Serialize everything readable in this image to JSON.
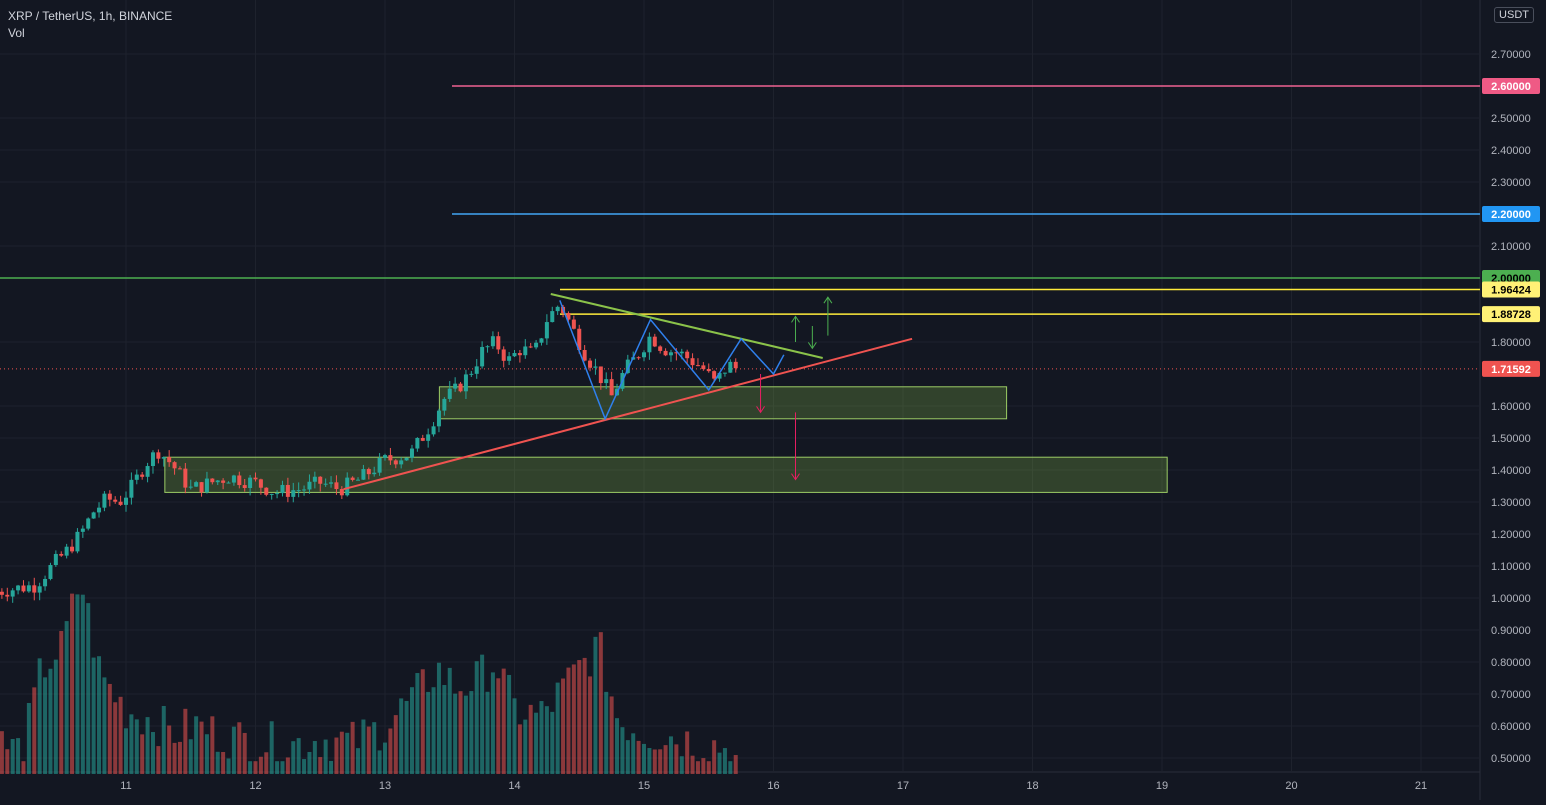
{
  "header": {
    "symbol_line": "XRP / TetherUS, 1h, BINANCE",
    "indicator": "Vol",
    "currency_badge": "USDT"
  },
  "colors": {
    "background": "#131722",
    "up": "#26a69a",
    "down": "#ef5350",
    "grid": "#1e222d",
    "text": "#b2b5be"
  },
  "chart_data": {
    "type": "candlestick",
    "ylim": [
      0.45,
      2.82
    ],
    "y_ticks": [
      "2.70000",
      "2.50000",
      "2.40000",
      "2.30000",
      "2.10000",
      "1.80000",
      "1.60000",
      "1.50000",
      "1.40000",
      "1.30000",
      "1.20000",
      "1.10000",
      "1.00000",
      "0.90000",
      "0.80000",
      "0.70000",
      "0.60000",
      "0.50000"
    ],
    "x_ticks": [
      "11",
      "12",
      "13",
      "14",
      "15",
      "16",
      "17",
      "18",
      "19",
      "20",
      "21"
    ],
    "price_levels": [
      {
        "label": "2.60000",
        "value": 2.6,
        "color": "#f06292",
        "bg": "#ef5a85",
        "text_color": "#ffffff"
      },
      {
        "label": "2.20000",
        "value": 2.2,
        "color": "#42a5f5",
        "bg": "#2196f3",
        "text_color": "#ffffff"
      },
      {
        "label": "2.00000",
        "value": 2.0,
        "color": "#4caf50",
        "bg": "#4caf50",
        "text_color": "#000000"
      },
      {
        "label": "1.96424",
        "value": 1.96424,
        "color": "#ffeb3b",
        "bg": "#fff176",
        "text_color": "#000000"
      },
      {
        "label": "1.88728",
        "value": 1.88728,
        "color": "#ffeb3b",
        "bg": "#fff176",
        "text_color": "#000000"
      },
      {
        "label": "1.71592",
        "value": 1.71592,
        "color": "#ef5350",
        "bg": "#ef5350",
        "text_color": "#ffffff"
      }
    ],
    "support_zones": [
      {
        "x_start": 13.42,
        "x_end": 17.8,
        "y_low": 1.56,
        "y_high": 1.66
      },
      {
        "x_start": 11.3,
        "x_end": 19.04,
        "y_low": 1.33,
        "y_high": 1.44
      }
    ],
    "trendlines": [
      {
        "name": "ascending support",
        "color": "#ef5350",
        "points": [
          [
            12.68,
            1.34
          ],
          [
            17.07,
            1.81
          ]
        ]
      },
      {
        "name": "descending resistance",
        "color": "#8bc34a",
        "points": [
          [
            14.28,
            1.95
          ],
          [
            16.38,
            1.75
          ]
        ]
      }
    ],
    "projection_path": {
      "color": "#2f80ed",
      "points": [
        [
          14.35,
          1.93
        ],
        [
          14.7,
          1.56
        ],
        [
          15.05,
          1.87
        ],
        [
          15.5,
          1.65
        ],
        [
          15.75,
          1.81
        ],
        [
          16,
          1.7
        ],
        [
          16.08,
          1.76
        ]
      ]
    },
    "arrows": [
      {
        "direction": "up",
        "color": "#4caf50",
        "x": 16.17,
        "from": 1.8,
        "to": 1.88
      },
      {
        "direction": "up",
        "color": "#4caf50",
        "x": 16.42,
        "from": 1.82,
        "to": 1.94
      },
      {
        "direction": "down",
        "color": "#4caf50",
        "x": 16.3,
        "from": 1.85,
        "to": 1.78
      },
      {
        "direction": "down",
        "color": "#e91e63",
        "x": 15.9,
        "from": 1.7,
        "to": 1.58
      },
      {
        "direction": "down",
        "color": "#e91e63",
        "x": 16.17,
        "from": 1.58,
        "to": 1.37
      }
    ],
    "price_series": [
      {
        "t": 10.0,
        "close": 1.02
      },
      {
        "t": 10.15,
        "close": 1.03
      },
      {
        "t": 10.3,
        "close": 1.04
      },
      {
        "t": 10.45,
        "close": 1.11
      },
      {
        "t": 10.55,
        "close": 1.15
      },
      {
        "t": 10.65,
        "close": 1.2
      },
      {
        "t": 10.75,
        "close": 1.27
      },
      {
        "t": 10.85,
        "close": 1.31
      },
      {
        "t": 10.95,
        "close": 1.3
      },
      {
        "t": 11.05,
        "close": 1.35
      },
      {
        "t": 11.15,
        "close": 1.42
      },
      {
        "t": 11.25,
        "close": 1.46
      },
      {
        "t": 11.35,
        "close": 1.42
      },
      {
        "t": 11.5,
        "close": 1.34
      },
      {
        "t": 11.65,
        "close": 1.36
      },
      {
        "t": 11.8,
        "close": 1.38
      },
      {
        "t": 12.0,
        "close": 1.36
      },
      {
        "t": 12.15,
        "close": 1.33
      },
      {
        "t": 12.35,
        "close": 1.34
      },
      {
        "t": 12.5,
        "close": 1.36
      },
      {
        "t": 12.65,
        "close": 1.34
      },
      {
        "t": 12.8,
        "close": 1.37
      },
      {
        "t": 13.0,
        "close": 1.43
      },
      {
        "t": 13.2,
        "close": 1.45
      },
      {
        "t": 13.35,
        "close": 1.54
      },
      {
        "t": 13.45,
        "close": 1.62
      },
      {
        "t": 13.55,
        "close": 1.65
      },
      {
        "t": 13.65,
        "close": 1.7
      },
      {
        "t": 13.75,
        "close": 1.77
      },
      {
        "t": 13.85,
        "close": 1.8
      },
      {
        "t": 13.95,
        "close": 1.74
      },
      {
        "t": 14.05,
        "close": 1.78
      },
      {
        "t": 14.15,
        "close": 1.76
      },
      {
        "t": 14.25,
        "close": 1.87
      },
      {
        "t": 14.35,
        "close": 1.92
      },
      {
        "t": 14.45,
        "close": 1.84
      },
      {
        "t": 14.55,
        "close": 1.76
      },
      {
        "t": 14.65,
        "close": 1.7
      },
      {
        "t": 14.75,
        "close": 1.63
      },
      {
        "t": 14.85,
        "close": 1.71
      },
      {
        "t": 14.95,
        "close": 1.76
      },
      {
        "t": 15.05,
        "close": 1.82
      },
      {
        "t": 15.15,
        "close": 1.78
      },
      {
        "t": 15.3,
        "close": 1.76
      },
      {
        "t": 15.45,
        "close": 1.72
      },
      {
        "t": 15.55,
        "close": 1.67
      },
      {
        "t": 15.65,
        "close": 1.73
      },
      {
        "t": 15.72,
        "close": 1.716
      }
    ],
    "volume_series": [
      {
        "t": 10.0,
        "v": 0.55
      },
      {
        "t": 10.2,
        "v": 0.52
      },
      {
        "t": 10.35,
        "v": 0.78
      },
      {
        "t": 10.5,
        "v": 0.84
      },
      {
        "t": 10.65,
        "v": 1.06
      },
      {
        "t": 10.8,
        "v": 0.76
      },
      {
        "t": 11.0,
        "v": 0.65
      },
      {
        "t": 11.2,
        "v": 0.62
      },
      {
        "t": 11.35,
        "v": 0.58
      },
      {
        "t": 11.55,
        "v": 0.6
      },
      {
        "t": 11.75,
        "v": 0.57
      },
      {
        "t": 12.0,
        "v": 0.55
      },
      {
        "t": 12.25,
        "v": 0.54
      },
      {
        "t": 12.5,
        "v": 0.56
      },
      {
        "t": 12.75,
        "v": 0.55
      },
      {
        "t": 13.0,
        "v": 0.6
      },
      {
        "t": 13.25,
        "v": 0.7
      },
      {
        "t": 13.4,
        "v": 0.78
      },
      {
        "t": 13.55,
        "v": 0.72
      },
      {
        "t": 13.7,
        "v": 0.74
      },
      {
        "t": 13.85,
        "v": 0.8
      },
      {
        "t": 14.0,
        "v": 0.65
      },
      {
        "t": 14.2,
        "v": 0.63
      },
      {
        "t": 14.35,
        "v": 0.7
      },
      {
        "t": 14.5,
        "v": 0.78
      },
      {
        "t": 14.65,
        "v": 0.85
      },
      {
        "t": 14.8,
        "v": 0.62
      },
      {
        "t": 15.0,
        "v": 0.58
      },
      {
        "t": 15.2,
        "v": 0.57
      },
      {
        "t": 15.4,
        "v": 0.55
      },
      {
        "t": 15.6,
        "v": 0.54
      },
      {
        "t": 15.72,
        "v": 0.49
      }
    ]
  }
}
